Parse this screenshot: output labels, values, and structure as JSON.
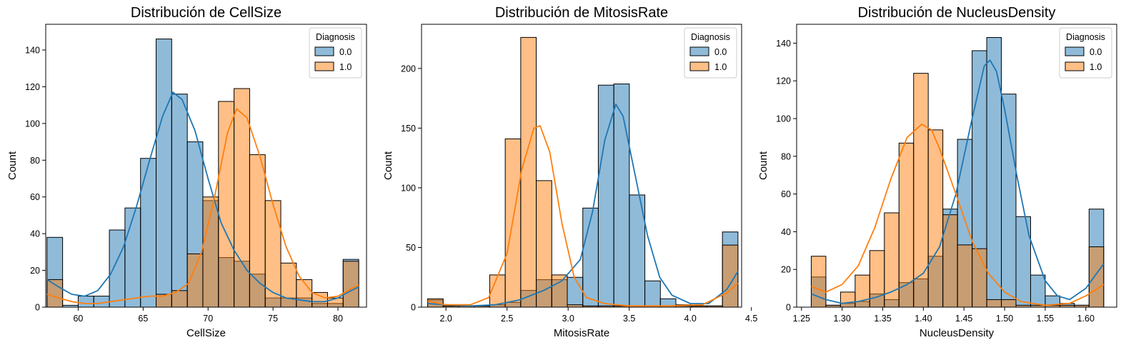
{
  "colors": {
    "class0_fill": "#1f77b4",
    "class1_fill": "#ff7f0e",
    "class0_line": "#1f77b4",
    "class1_line": "#ff7f0e",
    "edge": "#000000"
  },
  "chart_data": [
    {
      "type": "histogram",
      "title": "Distribución de CellSize",
      "xlabel": "CellSize",
      "ylabel": "Count",
      "xlim": [
        57.5,
        82.2
      ],
      "ylim": [
        0,
        154
      ],
      "xticks": [
        60,
        65,
        70,
        75,
        80
      ],
      "yticks": [
        0,
        20,
        40,
        60,
        80,
        100,
        120,
        140
      ],
      "bin_edges": [
        57.6,
        58.8,
        60.0,
        61.2,
        62.4,
        63.6,
        64.8,
        66.0,
        67.2,
        68.4,
        69.6,
        70.8,
        72.0,
        73.2,
        74.4,
        75.6,
        76.8,
        78.0,
        79.2,
        80.4,
        81.6
      ],
      "legend": {
        "title": "Diagnosis",
        "position": "top-right"
      },
      "series": [
        {
          "name": "0.0",
          "counts": [
            38,
            1,
            6,
            6,
            42,
            54,
            81,
            146,
            116,
            90,
            58,
            27,
            25,
            18,
            5,
            5,
            5,
            2,
            2,
            26
          ],
          "kde": [
            [
              57.6,
              15
            ],
            [
              58.5,
              11
            ],
            [
              59.5,
              7
            ],
            [
              60.5,
              6
            ],
            [
              61.5,
              9
            ],
            [
              62.5,
              18
            ],
            [
              63.5,
              33
            ],
            [
              64.5,
              55
            ],
            [
              65.5,
              80
            ],
            [
              66.5,
              104
            ],
            [
              67.3,
              117
            ],
            [
              68.0,
              113
            ],
            [
              69.0,
              96
            ],
            [
              70.0,
              70
            ],
            [
              71.0,
              46
            ],
            [
              72.0,
              31
            ],
            [
              73.0,
              20
            ],
            [
              74.0,
              13
            ],
            [
              75.0,
              8
            ],
            [
              76.0,
              5
            ],
            [
              77.0,
              4
            ],
            [
              78.0,
              3
            ],
            [
              79.0,
              3
            ],
            [
              80.0,
              5
            ],
            [
              81.0,
              9
            ],
            [
              81.6,
              11
            ]
          ]
        },
        {
          "name": "1.0",
          "counts": [
            15,
            0,
            0,
            0,
            0,
            0,
            0,
            7,
            9,
            29,
            60,
            112,
            119,
            83,
            58,
            24,
            15,
            8,
            5,
            25
          ],
          "kde": [
            [
              57.6,
              7
            ],
            [
              58.5,
              5
            ],
            [
              59.5,
              3
            ],
            [
              60.5,
              2
            ],
            [
              61.5,
              2
            ],
            [
              62.5,
              3
            ],
            [
              63.5,
              4
            ],
            [
              64.5,
              5
            ],
            [
              65.5,
              6
            ],
            [
              66.5,
              6
            ],
            [
              67.5,
              8
            ],
            [
              68.5,
              13
            ],
            [
              69.5,
              30
            ],
            [
              70.5,
              60
            ],
            [
              71.5,
              95
            ],
            [
              72.2,
              108
            ],
            [
              73.0,
              103
            ],
            [
              74.0,
              82
            ],
            [
              75.0,
              56
            ],
            [
              76.0,
              33
            ],
            [
              77.0,
              17
            ],
            [
              78.0,
              8
            ],
            [
              79.0,
              5
            ],
            [
              80.0,
              6
            ],
            [
              81.0,
              10
            ],
            [
              81.6,
              12
            ]
          ]
        }
      ]
    },
    {
      "type": "histogram",
      "title": "Distribución de MitosisRate",
      "xlabel": "MitosisRate",
      "ylabel": "Count",
      "xlim": [
        1.8,
        4.42
      ],
      "ylim": [
        0,
        237
      ],
      "xticks": [
        2.0,
        2.5,
        3.0,
        3.5,
        4.0,
        4.5
      ],
      "yticks": [
        0,
        50,
        100,
        150,
        200
      ],
      "bin_edges": [
        1.85,
        1.977,
        2.104,
        2.231,
        2.358,
        2.485,
        2.612,
        2.739,
        2.866,
        2.993,
        3.12,
        3.247,
        3.374,
        3.501,
        3.628,
        3.755,
        3.882,
        4.009,
        4.136,
        4.263,
        4.39
      ],
      "legend": {
        "title": "Diagnosis",
        "position": "top-right"
      },
      "series": [
        {
          "name": "0.0",
          "counts": [
            6,
            1,
            1,
            1,
            2,
            4,
            14,
            23,
            23,
            25,
            83,
            186,
            187,
            94,
            22,
            7,
            2,
            1,
            1,
            63
          ],
          "kde": [
            [
              1.85,
              3
            ],
            [
              2.0,
              2
            ],
            [
              2.2,
              1
            ],
            [
              2.4,
              2
            ],
            [
              2.6,
              6
            ],
            [
              2.8,
              14
            ],
            [
              2.95,
              22
            ],
            [
              3.1,
              40
            ],
            [
              3.2,
              80
            ],
            [
              3.3,
              140
            ],
            [
              3.39,
              170
            ],
            [
              3.45,
              160
            ],
            [
              3.55,
              110
            ],
            [
              3.65,
              60
            ],
            [
              3.75,
              25
            ],
            [
              3.85,
              10
            ],
            [
              4.0,
              3
            ],
            [
              4.15,
              3
            ],
            [
              4.3,
              15
            ],
            [
              4.39,
              30
            ]
          ]
        },
        {
          "name": "1.0",
          "counts": [
            7,
            1,
            1,
            1,
            27,
            141,
            226,
            106,
            27,
            2,
            1,
            1,
            1,
            1,
            1,
            1,
            1,
            1,
            1,
            52
          ],
          "kde": [
            [
              1.85,
              5
            ],
            [
              2.0,
              2
            ],
            [
              2.2,
              2
            ],
            [
              2.35,
              8
            ],
            [
              2.5,
              45
            ],
            [
              2.62,
              115
            ],
            [
              2.72,
              150
            ],
            [
              2.77,
              152
            ],
            [
              2.85,
              130
            ],
            [
              2.95,
              70
            ],
            [
              3.05,
              25
            ],
            [
              3.15,
              8
            ],
            [
              3.3,
              3
            ],
            [
              3.5,
              1
            ],
            [
              3.8,
              1
            ],
            [
              4.1,
              2
            ],
            [
              4.3,
              12
            ],
            [
              4.39,
              20
            ]
          ]
        }
      ]
    },
    {
      "type": "histogram",
      "title": "Distribución de NucleusDensity",
      "xlabel": "NucleusDensity",
      "ylabel": "Count",
      "xlim": [
        1.244,
        1.638
      ],
      "ylim": [
        0,
        150
      ],
      "xticks": [
        1.25,
        1.3,
        1.35,
        1.4,
        1.45,
        1.5,
        1.55,
        1.6
      ],
      "yticks": [
        0,
        20,
        40,
        60,
        80,
        100,
        120,
        140
      ],
      "bin_edges": [
        1.262,
        1.28,
        1.298,
        1.316,
        1.334,
        1.352,
        1.37,
        1.388,
        1.406,
        1.424,
        1.442,
        1.46,
        1.478,
        1.496,
        1.514,
        1.532,
        1.55,
        1.568,
        1.586,
        1.604,
        1.622
      ],
      "legend": {
        "title": "Diagnosis",
        "position": "top-right"
      },
      "series": [
        {
          "name": "0.0",
          "counts": [
            16,
            1,
            2,
            3,
            7,
            4,
            13,
            15,
            27,
            52,
            89,
            136,
            143,
            113,
            48,
            17,
            6,
            2,
            1,
            52
          ],
          "kde": [
            [
              1.262,
              7
            ],
            [
              1.28,
              4
            ],
            [
              1.3,
              2
            ],
            [
              1.32,
              3
            ],
            [
              1.34,
              5
            ],
            [
              1.36,
              8
            ],
            [
              1.38,
              12
            ],
            [
              1.4,
              18
            ],
            [
              1.42,
              32
            ],
            [
              1.44,
              60
            ],
            [
              1.46,
              100
            ],
            [
              1.475,
              128
            ],
            [
              1.482,
              131
            ],
            [
              1.49,
              125
            ],
            [
              1.5,
              105
            ],
            [
              1.515,
              70
            ],
            [
              1.53,
              38
            ],
            [
              1.55,
              14
            ],
            [
              1.565,
              6
            ],
            [
              1.58,
              4
            ],
            [
              1.6,
              10
            ],
            [
              1.622,
              23
            ]
          ]
        },
        {
          "name": "1.0",
          "counts": [
            27,
            1,
            8,
            17,
            30,
            50,
            87,
            124,
            94,
            49,
            33,
            31,
            4,
            4,
            1,
            1,
            1,
            1,
            1,
            32
          ],
          "kde": [
            [
              1.262,
              11
            ],
            [
              1.28,
              8
            ],
            [
              1.3,
              12
            ],
            [
              1.32,
              22
            ],
            [
              1.34,
              42
            ],
            [
              1.36,
              68
            ],
            [
              1.38,
              90
            ],
            [
              1.398,
              97
            ],
            [
              1.41,
              94
            ],
            [
              1.42,
              84
            ],
            [
              1.44,
              60
            ],
            [
              1.46,
              35
            ],
            [
              1.48,
              18
            ],
            [
              1.5,
              8
            ],
            [
              1.52,
              3
            ],
            [
              1.55,
              1
            ],
            [
              1.58,
              2
            ],
            [
              1.6,
              6
            ],
            [
              1.622,
              12
            ]
          ]
        }
      ]
    }
  ]
}
